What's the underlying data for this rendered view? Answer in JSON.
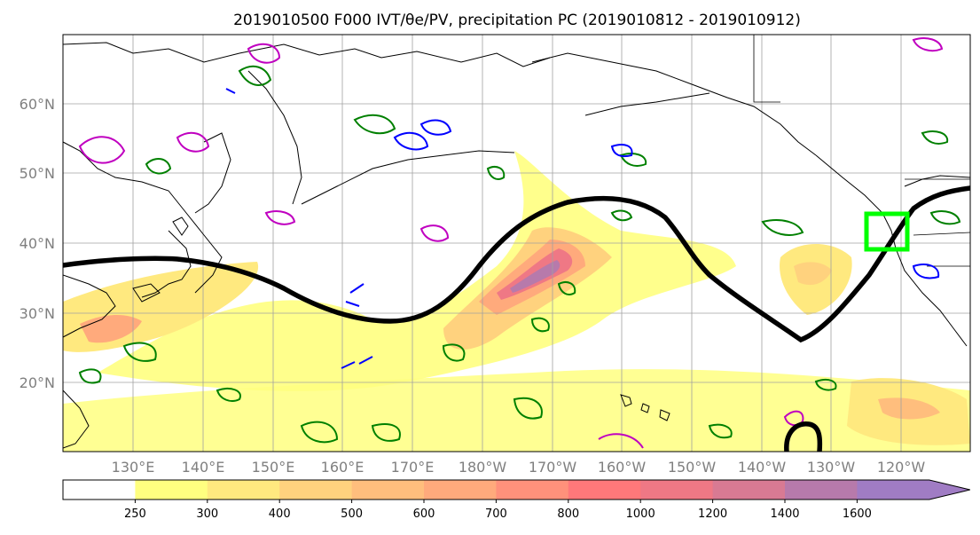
{
  "title": "2019010500 F000 IVT/θe/PV, precipitation PC (2019010812 - 2019010912)",
  "lat_labels": [
    "60°N",
    "50°N",
    "40°N",
    "30°N",
    "20°N"
  ],
  "lon_labels": [
    "130°E",
    "140°E",
    "150°E",
    "160°E",
    "170°E",
    "180°W",
    "170°W",
    "160°W",
    "150°W",
    "140°W",
    "130°W",
    "120°W"
  ],
  "colorbar": {
    "ticks": [
      "250",
      "300",
      "400",
      "500",
      "600",
      "700",
      "800",
      "1000",
      "1200",
      "1400",
      "1600"
    ],
    "colors": [
      "#ffffff",
      "#ffff80",
      "#ffe97f",
      "#ffd27e",
      "#ffbe7d",
      "#ffaa7c",
      "#ff917b",
      "#ff787a",
      "#ef7885",
      "#d87a93",
      "#b77aab",
      "#a07cc4"
    ]
  },
  "colors": {
    "ridge_line": "#000000",
    "pv_contour": "#008000",
    "theta_e_neg": "#0000ff",
    "theta_e_pos": "#c000c0",
    "target_box": "#00ff00"
  }
}
